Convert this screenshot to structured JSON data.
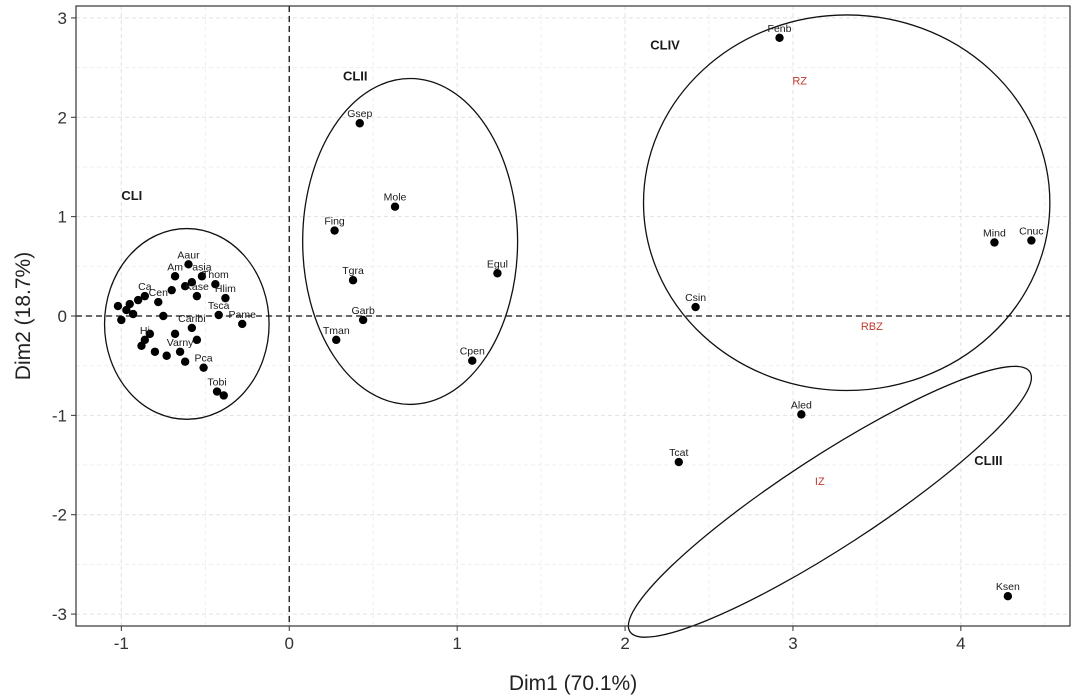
{
  "chart_data": {
    "type": "scatter",
    "title": "",
    "xlabel": "Dim1 (70.1%)",
    "ylabel": "Dim2 (18.7%)",
    "xlim": [
      -1.27,
      4.65
    ],
    "ylim": [
      -3.12,
      3.12
    ],
    "x_ticks": [
      -1,
      0,
      1,
      2,
      3,
      4
    ],
    "y_ticks": [
      -3,
      -2,
      -1,
      0,
      1,
      2,
      3
    ],
    "grid": true,
    "reference_lines": {
      "x": 0,
      "y": 0,
      "style": "dashed"
    },
    "points": [
      {
        "label": "Fenb",
        "x": 2.92,
        "y": 2.8
      },
      {
        "label": "Mind",
        "x": 4.2,
        "y": 0.74
      },
      {
        "label": "Cnuc",
        "x": 4.42,
        "y": 0.76
      },
      {
        "label": "Csin",
        "x": 2.42,
        "y": 0.09
      },
      {
        "label": "Aled",
        "x": 3.05,
        "y": -0.99
      },
      {
        "label": "Tcat",
        "x": 2.32,
        "y": -1.47
      },
      {
        "label": "Ksen",
        "x": 4.28,
        "y": -2.82
      },
      {
        "label": "Gsep",
        "x": 0.42,
        "y": 1.94
      },
      {
        "label": "Mole",
        "x": 0.63,
        "y": 1.1
      },
      {
        "label": "Fing",
        "x": 0.27,
        "y": 0.86
      },
      {
        "label": "Egul",
        "x": 1.24,
        "y": 0.43
      },
      {
        "label": "Tgra",
        "x": 0.38,
        "y": 0.36
      },
      {
        "label": "Garb",
        "x": 0.44,
        "y": -0.04
      },
      {
        "label": "Tman",
        "x": 0.28,
        "y": -0.24
      },
      {
        "label": "Cpen",
        "x": 1.09,
        "y": -0.45
      },
      {
        "label": "Aaur",
        "x": -0.6,
        "y": 0.52
      },
      {
        "label": "Am",
        "x": -0.68,
        "y": 0.4
      },
      {
        "label": "asia",
        "x": -0.52,
        "y": 0.4
      },
      {
        "label": "Thom",
        "x": -0.44,
        "y": 0.32
      },
      {
        "label": "Ca",
        "x": -0.86,
        "y": 0.2
      },
      {
        "label": "Cen",
        "x": -0.78,
        "y": 0.14
      },
      {
        "label": "Kase",
        "x": -0.55,
        "y": 0.2
      },
      {
        "label": "Hlim",
        "x": -0.38,
        "y": 0.18
      },
      {
        "label": "Tsca",
        "x": -0.42,
        "y": 0.01
      },
      {
        "label": "Pame",
        "x": -0.28,
        "y": -0.08
      },
      {
        "label": "Caribi",
        "x": -0.58,
        "y": -0.12
      },
      {
        "label": "Hi",
        "x": -0.86,
        "y": -0.24
      },
      {
        "label": "",
        "x": -0.8,
        "y": -0.36
      },
      {
        "label": "Varny",
        "x": -0.65,
        "y": -0.36
      },
      {
        "label": "Pca",
        "x": -0.51,
        "y": -0.52
      },
      {
        "label": "Tobi",
        "x": -0.43,
        "y": -0.76
      },
      {
        "label": "",
        "x": -0.39,
        "y": -0.8
      },
      {
        "label": "",
        "x": -1.02,
        "y": 0.1
      },
      {
        "label": "",
        "x": -0.97,
        "y": 0.06
      },
      {
        "label": "",
        "x": -0.93,
        "y": 0.02
      },
      {
        "label": "",
        "x": -1.0,
        "y": -0.04
      },
      {
        "label": "",
        "x": -0.95,
        "y": 0.12
      },
      {
        "label": "",
        "x": -0.9,
        "y": 0.16
      },
      {
        "label": "",
        "x": -0.75,
        "y": 0.0
      },
      {
        "label": "",
        "x": -0.7,
        "y": 0.26
      },
      {
        "label": "",
        "x": -0.62,
        "y": 0.3
      },
      {
        "label": "",
        "x": -0.58,
        "y": 0.34
      },
      {
        "label": "",
        "x": -0.73,
        "y": -0.4
      },
      {
        "label": "",
        "x": -0.68,
        "y": -0.18
      },
      {
        "label": "",
        "x": -0.55,
        "y": -0.24
      },
      {
        "label": "",
        "x": -0.88,
        "y": -0.3
      },
      {
        "label": "",
        "x": -0.83,
        "y": -0.18
      },
      {
        "label": "",
        "x": -0.62,
        "y": -0.46
      }
    ],
    "clusters": [
      {
        "label": "CLI",
        "center": [
          -0.61,
          -0.08
        ],
        "rx": 0.49,
        "ry": 0.96,
        "angle": 0
      },
      {
        "label": "CLII",
        "center": [
          0.72,
          0.75
        ],
        "rx": 0.64,
        "ry": 1.64,
        "angle": 0
      },
      {
        "label": "CLIII",
        "center": [
          3.22,
          -1.87
        ],
        "rx": 1.42,
        "ry": 0.46,
        "angle": -33
      },
      {
        "label": "CLIV",
        "center": [
          3.32,
          1.14
        ],
        "rx": 1.21,
        "ry": 1.89,
        "angle": 0
      }
    ],
    "cluster_labels": [
      {
        "text": "CLI",
        "x": -1.0,
        "y": 1.17
      },
      {
        "text": "CLII",
        "x": 0.32,
        "y": 2.37
      },
      {
        "text": "CLIII",
        "x": 4.08,
        "y": -1.5
      },
      {
        "text": "CLIV",
        "x": 2.15,
        "y": 2.68
      }
    ],
    "zone_labels": [
      {
        "text": "RZ",
        "x": 3.04,
        "y": 2.33
      },
      {
        "text": "RBZ",
        "x": 3.47,
        "y": -0.14
      },
      {
        "text": "IZ",
        "x": 3.16,
        "y": -1.7
      }
    ]
  }
}
